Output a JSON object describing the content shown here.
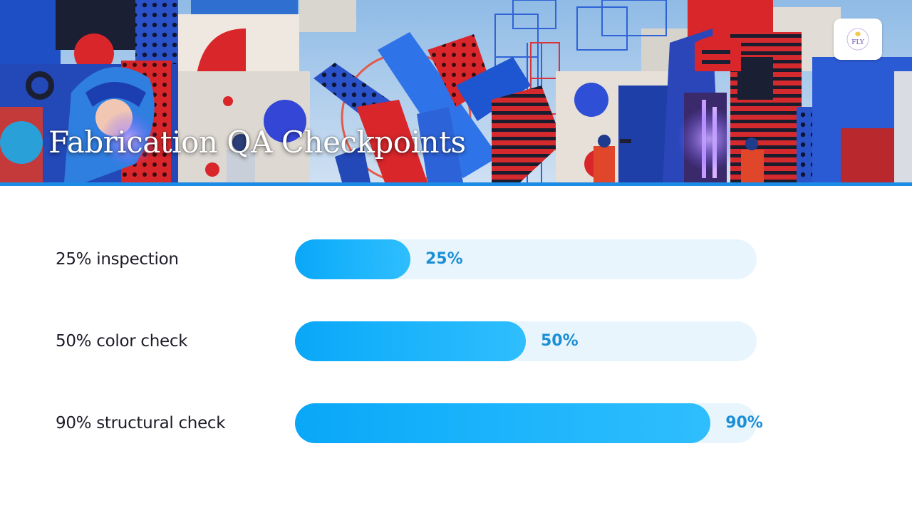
{
  "header": {
    "title": "Fabrication QA Checkpoints",
    "logo_text": "FLY"
  },
  "colors": {
    "accent": "#1c8ce6",
    "bar_fill": "#16b1fb",
    "bar_track": "#e8f5fd",
    "value_text": "#1b8fd6"
  },
  "checkpoints": [
    {
      "label": "25% inspection",
      "value_label": "25%",
      "fraction": 0.25
    },
    {
      "label": "50% color check",
      "value_label": "50%",
      "fraction": 0.5
    },
    {
      "label": "90% structural check",
      "value_label": "90%",
      "fraction": 0.9
    }
  ]
}
